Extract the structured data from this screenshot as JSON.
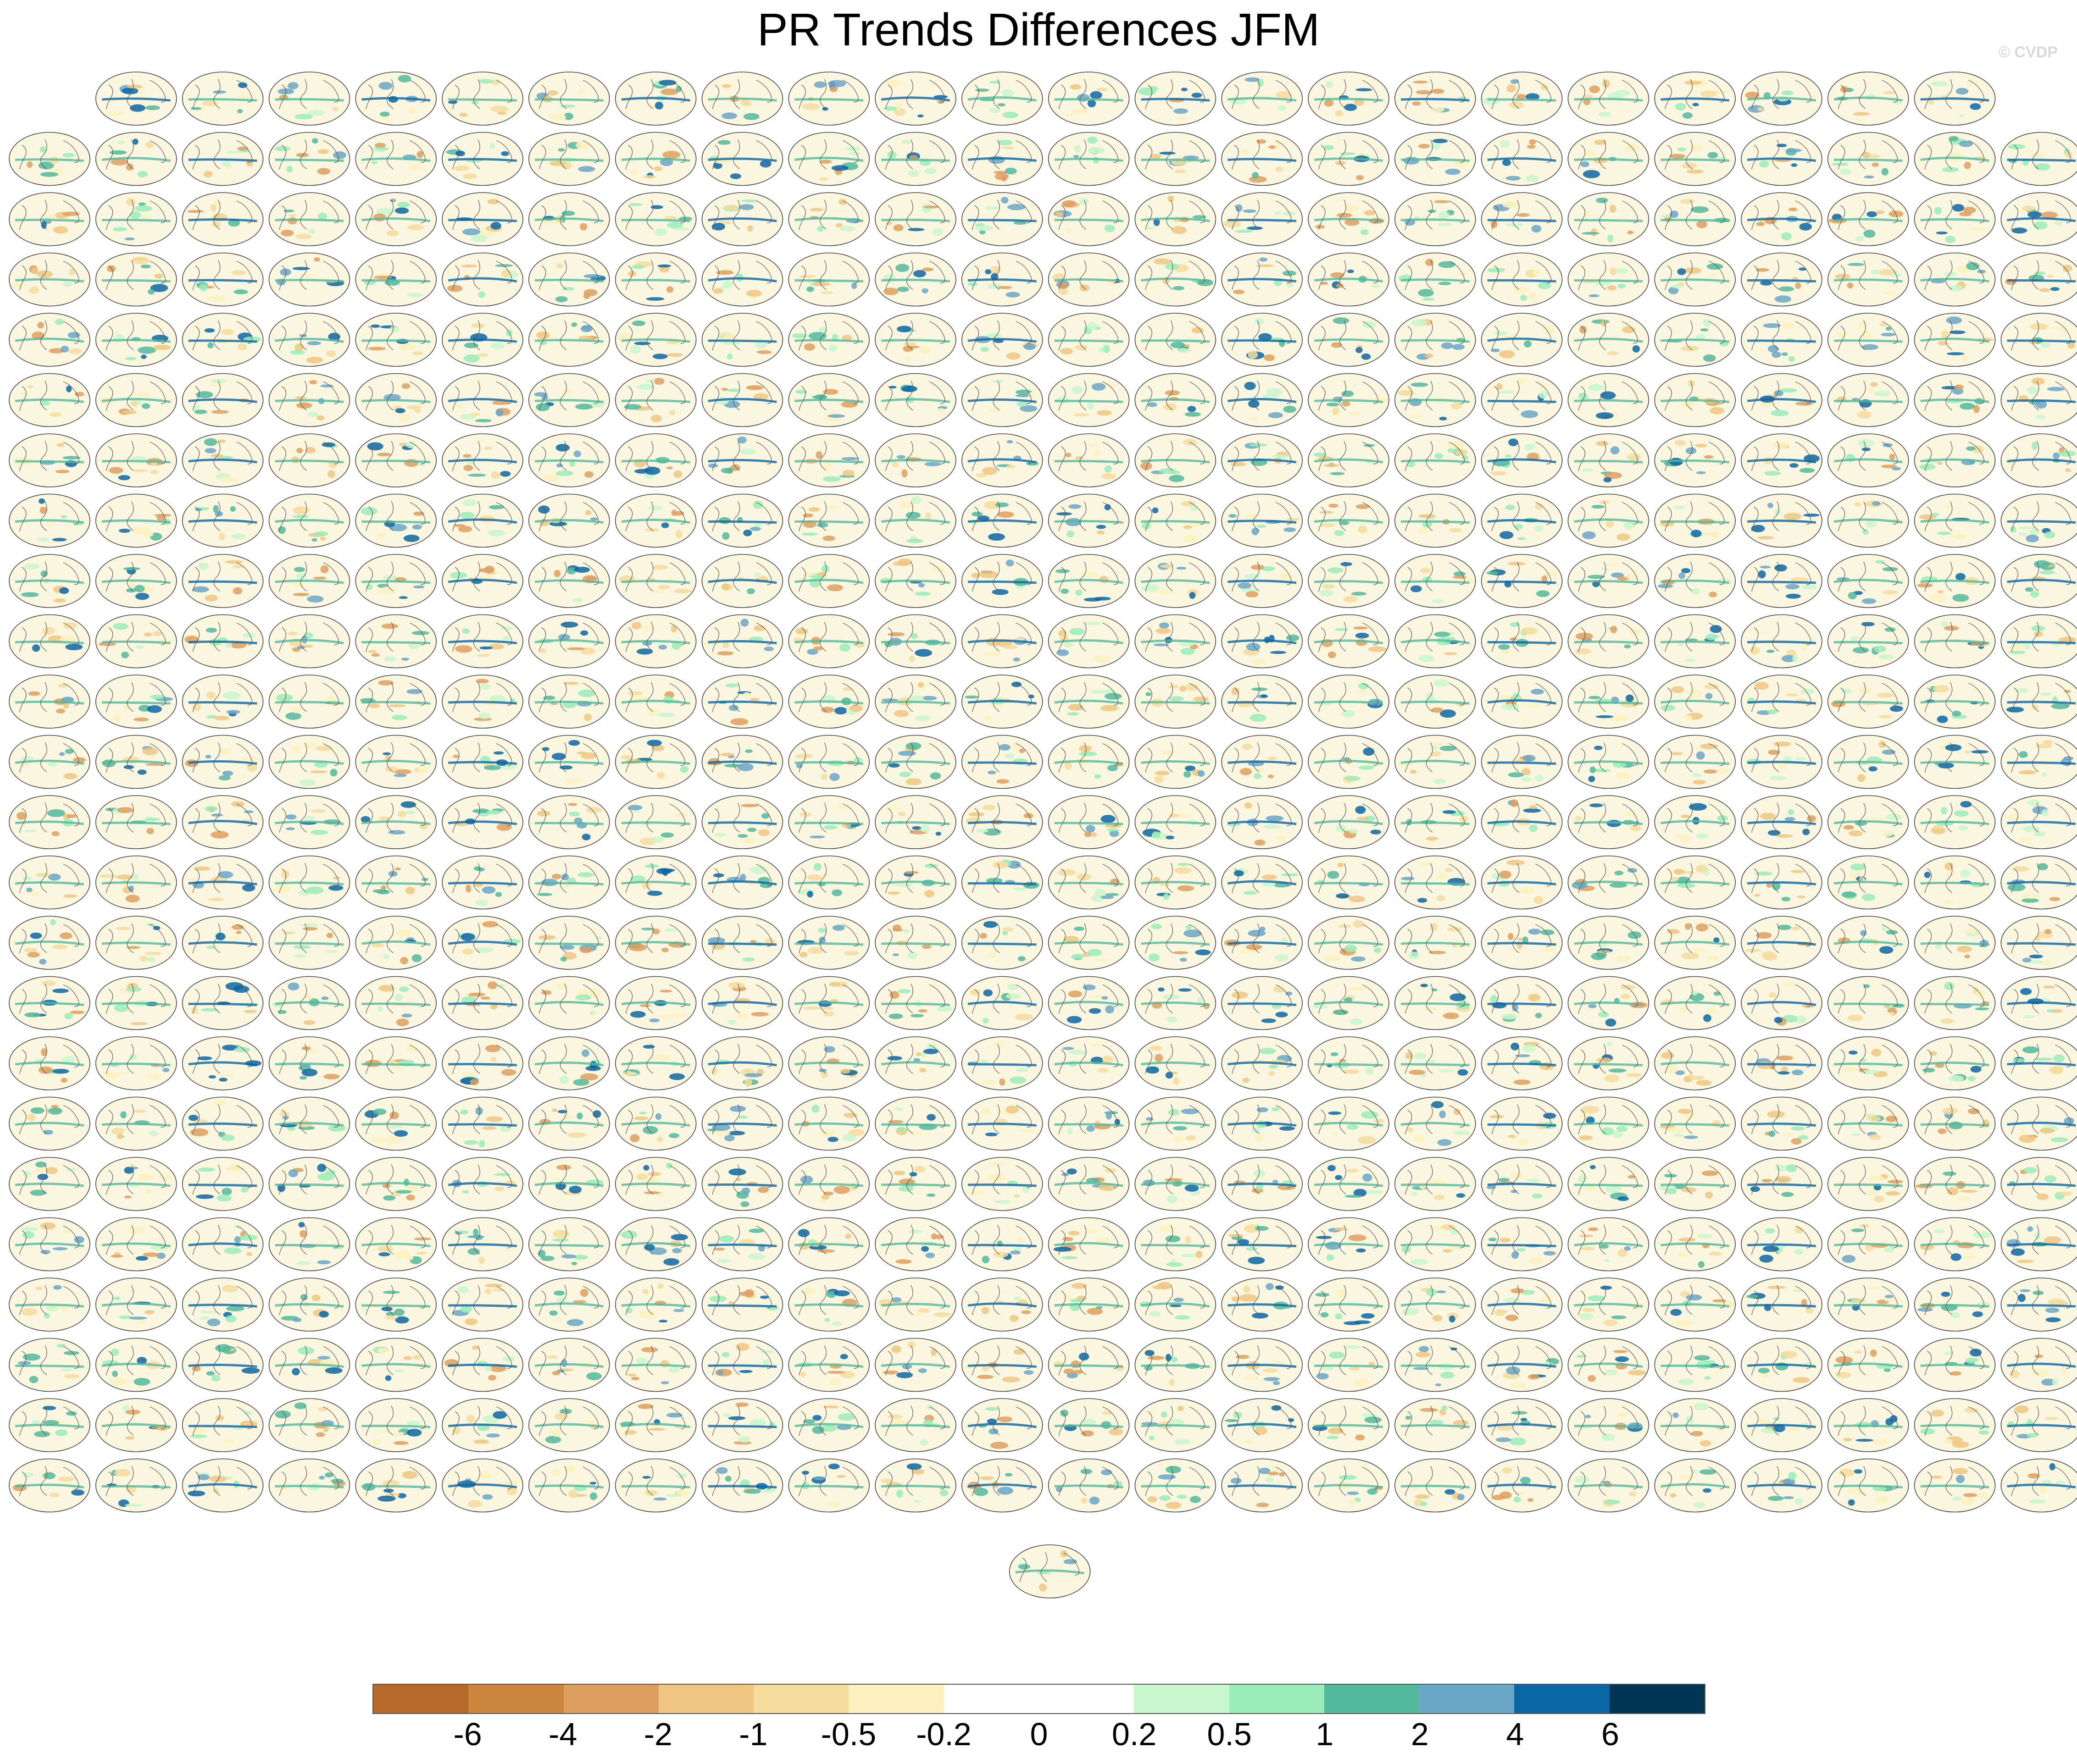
{
  "chart_data": {
    "type": "heatmap",
    "title": "PR Trends Differences JFM",
    "subtitle": "",
    "watermark": "© CVDP",
    "panels": {
      "kind": "global precipitation trend difference maps (one per ensemble member)",
      "rows": [
        22,
        24,
        24,
        24,
        24,
        24,
        24,
        24,
        24,
        24,
        24,
        24,
        24,
        24,
        24,
        24,
        24,
        24,
        24,
        24,
        24,
        24,
        24,
        24,
        1
      ],
      "total": 575
    },
    "colorbar": {
      "orientation": "horizontal",
      "placement": "bottom",
      "levels": [
        "-6",
        "-4",
        "-2",
        "-1",
        "-0.5",
        "-0.2",
        "0",
        "0.2",
        "0.5",
        "1",
        "2",
        "4",
        "6"
      ],
      "colors": [
        "#b5692a",
        "#cc853e",
        "#dd9f60",
        "#efc581",
        "#f5dc9e",
        "#fdf1c0",
        "#ffffff",
        "#ffffff",
        "#c8f7cd",
        "#9aecb8",
        "#52b99c",
        "#6aa6c8",
        "#0a66a4",
        "#003553"
      ]
    }
  }
}
